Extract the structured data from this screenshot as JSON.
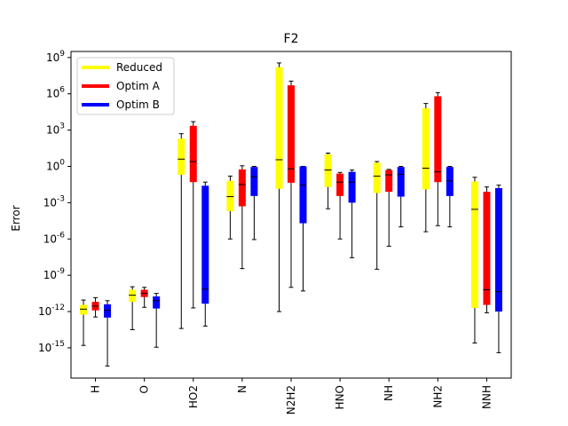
{
  "chart_data": {
    "type": "box",
    "title": "F2",
    "xlabel": "",
    "ylabel": "Error",
    "yscale": "log",
    "ylim_log10": [
      -17.5,
      9.5
    ],
    "yticks": [
      {
        "exp": 9,
        "label": "10^9"
      },
      {
        "exp": 6,
        "label": "10^6"
      },
      {
        "exp": 3,
        "label": "10^3"
      },
      {
        "exp": 0,
        "label": "10^0"
      },
      {
        "exp": -3,
        "label": "10^-3"
      },
      {
        "exp": -6,
        "label": "10^-6"
      },
      {
        "exp": -9,
        "label": "10^-9"
      },
      {
        "exp": -12,
        "label": "10^-12"
      },
      {
        "exp": -15,
        "label": "10^-15"
      }
    ],
    "categories": [
      "H",
      "O",
      "HO2",
      "N",
      "N2H2",
      "HNO",
      "NH",
      "NH2",
      "NNH"
    ],
    "legend_position": "upper-left",
    "series": [
      {
        "name": "Reduced",
        "color": "#ffff00",
        "boxes_log10": [
          {
            "whislo": -14.8,
            "q1": -12.25,
            "med": -11.8,
            "q3": -11.45,
            "whishi": -11.05
          },
          {
            "whislo": -13.5,
            "q1": -11.2,
            "med": -10.65,
            "q3": -10.2,
            "whishi": -9.95
          },
          {
            "whislo": -13.4,
            "q1": -0.7,
            "med": 0.6,
            "q3": 2.3,
            "whishi": 2.7
          },
          {
            "whislo": -6.0,
            "q1": -3.7,
            "med": -2.5,
            "q3": -1.2,
            "whishi": -0.8
          },
          {
            "whislo": -12.0,
            "q1": -1.85,
            "med": 0.55,
            "q3": 8.2,
            "whishi": 8.55
          },
          {
            "whislo": -3.5,
            "q1": -1.7,
            "med": -0.3,
            "q3": 1.0,
            "whishi": 1.1
          },
          {
            "whislo": -8.5,
            "q1": -2.2,
            "med": -0.8,
            "q3": 0.3,
            "whishi": 0.4
          },
          {
            "whislo": -5.4,
            "q1": -1.9,
            "med": -0.15,
            "q3": 4.8,
            "whishi": 5.2
          },
          {
            "whislo": -14.6,
            "q1": -11.7,
            "med": -3.55,
            "q3": -1.25,
            "whishi": -0.9
          }
        ]
      },
      {
        "name": "Optim A",
        "color": "#ff0000",
        "boxes_log10": [
          {
            "whislo": -12.45,
            "q1": -11.9,
            "med": -11.55,
            "q3": -11.2,
            "whishi": -10.85
          },
          {
            "whislo": -11.65,
            "q1": -10.8,
            "med": -10.5,
            "q3": -10.2,
            "whishi": -10.0
          },
          {
            "whislo": -11.7,
            "q1": -1.3,
            "med": 0.4,
            "q3": 3.35,
            "whishi": 3.7
          },
          {
            "whislo": -8.45,
            "q1": -3.3,
            "med": -1.5,
            "q3": -0.25,
            "whishi": 0.05
          },
          {
            "whislo": -10.0,
            "q1": -1.35,
            "med": -0.2,
            "q3": 6.7,
            "whishi": 7.05
          },
          {
            "whislo": -6.0,
            "q1": -2.45,
            "med": -1.3,
            "q3": -0.6,
            "whishi": -0.5
          },
          {
            "whislo": -6.6,
            "q1": -2.1,
            "med": -0.7,
            "q3": -0.3,
            "whishi": -0.25
          },
          {
            "whislo": -4.9,
            "q1": -1.3,
            "med": -0.45,
            "q3": 5.8,
            "whishi": 6.1
          },
          {
            "whislo": -12.1,
            "q1": -11.45,
            "med": -10.2,
            "q3": -2.1,
            "whishi": -1.7
          }
        ]
      },
      {
        "name": "Optim B",
        "color": "#0000ff",
        "boxes_log10": [
          {
            "whislo": -16.5,
            "q1": -12.5,
            "med": -11.9,
            "q3": -11.4,
            "whishi": -11.1
          },
          {
            "whislo": -14.95,
            "q1": -11.75,
            "med": -11.1,
            "q3": -10.75,
            "whishi": -10.5
          },
          {
            "whislo": -13.2,
            "q1": -11.35,
            "med": -10.15,
            "q3": -1.6,
            "whishi": -1.3
          },
          {
            "whislo": -6.05,
            "q1": -2.45,
            "med": -0.85,
            "q3": -0.05,
            "whishi": 0.0
          },
          {
            "whislo": -10.3,
            "q1": -4.7,
            "med": -1.55,
            "q3": 0.0,
            "whishi": 0.0
          },
          {
            "whislo": -7.55,
            "q1": -3.0,
            "med": -1.3,
            "q3": -0.45,
            "whishi": -0.3
          },
          {
            "whislo": -5.0,
            "q1": -2.5,
            "med": -0.65,
            "q3": -0.05,
            "whishi": 0.0
          },
          {
            "whislo": -5.0,
            "q1": -2.45,
            "med": -1.2,
            "q3": -0.05,
            "whishi": 0.0
          },
          {
            "whislo": -15.4,
            "q1": -12.0,
            "med": -10.35,
            "q3": -1.8,
            "whishi": -1.55
          }
        ]
      }
    ]
  }
}
